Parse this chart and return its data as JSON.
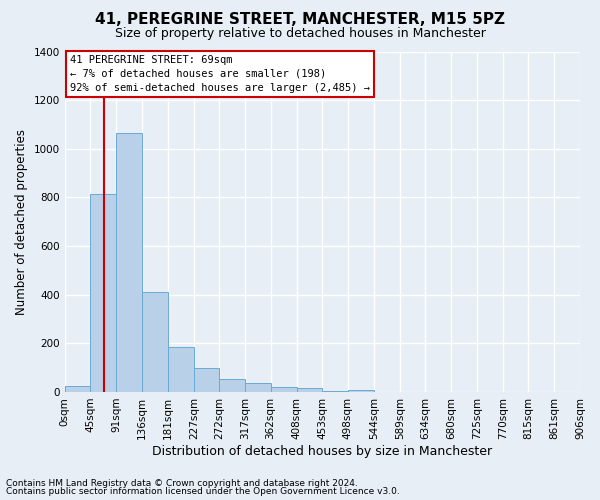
{
  "title": "41, PEREGRINE STREET, MANCHESTER, M15 5PZ",
  "subtitle": "Size of property relative to detached houses in Manchester",
  "xlabel": "Distribution of detached houses by size in Manchester",
  "ylabel": "Number of detached properties",
  "footnote1": "Contains HM Land Registry data © Crown copyright and database right 2024.",
  "footnote2": "Contains public sector information licensed under the Open Government Licence v3.0.",
  "annotation_title": "41 PEREGRINE STREET: 69sqm",
  "annotation_line1": "← 7% of detached houses are smaller (198)",
  "annotation_line2": "92% of semi-detached houses are larger (2,485) →",
  "bins": [
    0,
    45,
    91,
    136,
    181,
    227,
    272,
    317,
    362,
    408,
    453,
    498,
    544,
    589,
    634,
    680,
    725,
    770,
    815,
    861,
    906
  ],
  "bin_labels": [
    "0sqm",
    "45sqm",
    "91sqm",
    "136sqm",
    "181sqm",
    "227sqm",
    "272sqm",
    "317sqm",
    "362sqm",
    "408sqm",
    "453sqm",
    "498sqm",
    "544sqm",
    "589sqm",
    "634sqm",
    "680sqm",
    "725sqm",
    "770sqm",
    "815sqm",
    "861sqm",
    "906sqm"
  ],
  "counts": [
    25,
    815,
    1065,
    410,
    185,
    100,
    55,
    35,
    20,
    15,
    5,
    10,
    0,
    0,
    0,
    0,
    0,
    0,
    0,
    0
  ],
  "bar_color": "#b8d0e8",
  "bar_edge_color": "#6aaad4",
  "vline_x": 69,
  "vline_color": "#cc0000",
  "ylim": [
    0,
    1400
  ],
  "yticks": [
    0,
    200,
    400,
    600,
    800,
    1000,
    1200,
    1400
  ],
  "background_color": "#e8eef5",
  "grid_color": "#ffffff",
  "annotation_box_color": "#ffffff",
  "annotation_box_edge": "#cc0000",
  "title_fontsize": 11,
  "subtitle_fontsize": 9,
  "ylabel_fontsize": 8.5,
  "xlabel_fontsize": 9,
  "tick_fontsize": 7.5,
  "footnote_fontsize": 6.5
}
